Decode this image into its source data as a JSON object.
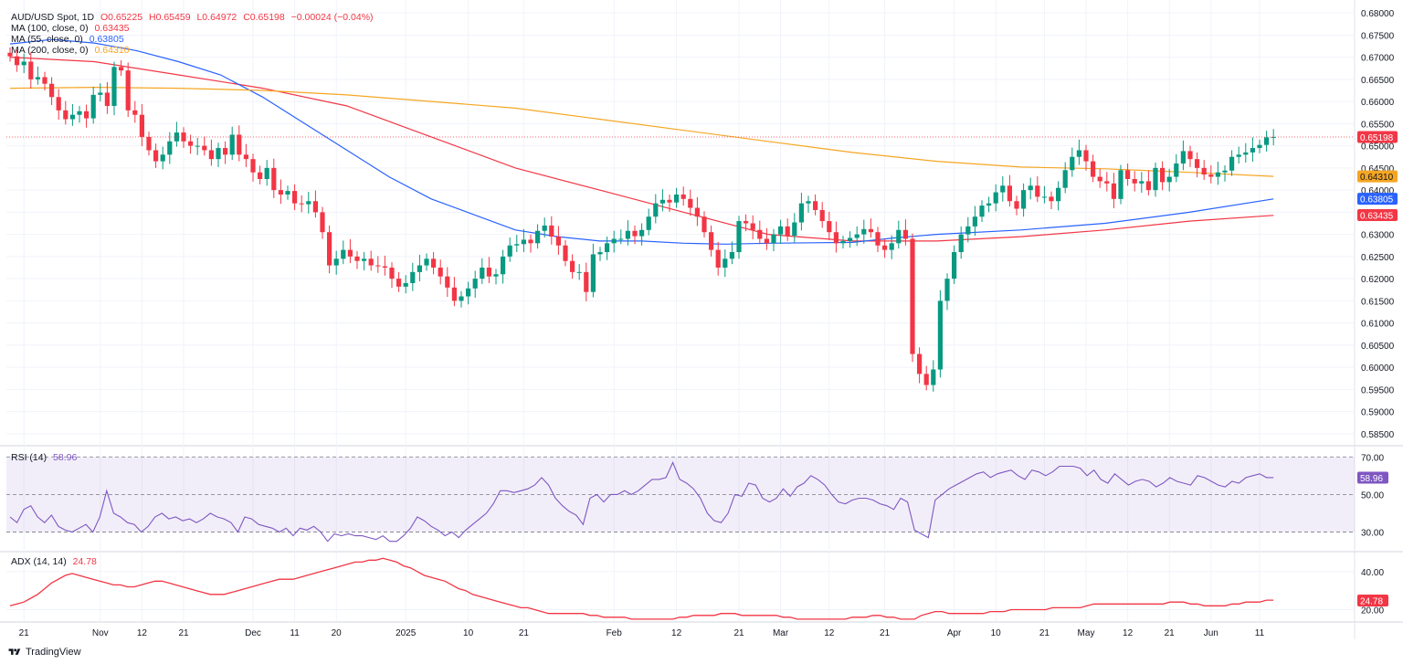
{
  "symbol": {
    "name": "AUD/USD Spot, 1D",
    "open": "O0.65225",
    "high": "H0.65459",
    "low": "L0.64972",
    "close": "C0.65198",
    "change": "−0.00024 (−0.04%)"
  },
  "indicators": {
    "ma100": {
      "label": "MA (100, close, 0)",
      "value": "0.63435",
      "color": "#f23645"
    },
    "ma55": {
      "label": "MA (55, close, 0)",
      "value": "0.63805",
      "color": "#2962ff"
    },
    "ma200": {
      "label": "MA (200, close, 0)",
      "value": "0.64310",
      "color": "#f5a623"
    },
    "rsi": {
      "label": "RSI (14)",
      "value": "58.96",
      "color": "#7e57c2"
    },
    "adx": {
      "label": "ADX (14, 14)",
      "value": "24.78",
      "color": "#f23645"
    }
  },
  "brand": "TradingView",
  "chart_data": [
    {
      "type": "candlestick",
      "title": "AUD/USD Spot, 1D",
      "ylim": [
        0.5825,
        0.6825
      ],
      "yticks": [
        "0.68000",
        "0.67500",
        "0.67000",
        "0.66500",
        "0.66000",
        "0.65500",
        "0.65000",
        "0.64500",
        "0.64000",
        "0.63500",
        "0.63000",
        "0.62500",
        "0.62000",
        "0.61500",
        "0.61000",
        "0.60500",
        "0.60000",
        "0.59500",
        "0.59000",
        "0.58500"
      ],
      "xticks": [
        "21",
        "Nov",
        "12",
        "21",
        "Dec",
        "11",
        "20",
        "2025",
        "10",
        "21",
        "Feb",
        "12",
        "21",
        "Mar",
        "12",
        "21",
        "Apr",
        "10",
        "21",
        "May",
        "12",
        "21",
        "Jun",
        "11"
      ],
      "last_price": "0.65198",
      "closes": [
        0.6702,
        0.6682,
        0.669,
        0.665,
        0.6655,
        0.664,
        0.661,
        0.658,
        0.656,
        0.657,
        0.6578,
        0.6562,
        0.6615,
        0.662,
        0.659,
        0.6678,
        0.667,
        0.658,
        0.657,
        0.652,
        0.649,
        0.6465,
        0.648,
        0.651,
        0.653,
        0.651,
        0.65,
        0.65,
        0.649,
        0.647,
        0.6495,
        0.648,
        0.6525,
        0.648,
        0.647,
        0.644,
        0.6425,
        0.645,
        0.64,
        0.639,
        0.6398,
        0.637,
        0.6368,
        0.6375,
        0.635,
        0.6305,
        0.623,
        0.6245,
        0.6265,
        0.625,
        0.624,
        0.6245,
        0.623,
        0.6228,
        0.6225,
        0.62,
        0.6182,
        0.619,
        0.6215,
        0.623,
        0.6245,
        0.6225,
        0.6205,
        0.618,
        0.615,
        0.616,
        0.6178,
        0.62,
        0.6225,
        0.6205,
        0.621,
        0.625,
        0.6275,
        0.6278,
        0.6288,
        0.628,
        0.6308,
        0.632,
        0.6295,
        0.6275,
        0.624,
        0.6215,
        0.6215,
        0.617,
        0.6255,
        0.626,
        0.628,
        0.629,
        0.629,
        0.6308,
        0.6296,
        0.631,
        0.634,
        0.637,
        0.6378,
        0.6372,
        0.639,
        0.638,
        0.636,
        0.634,
        0.6305,
        0.6265,
        0.6225,
        0.6245,
        0.626,
        0.633,
        0.6325,
        0.631,
        0.629,
        0.628,
        0.63,
        0.6318,
        0.6297,
        0.6327,
        0.637,
        0.6375,
        0.6355,
        0.633,
        0.6305,
        0.628,
        0.6285,
        0.6292,
        0.63,
        0.6312,
        0.6305,
        0.6275,
        0.6265,
        0.628,
        0.631,
        0.629,
        0.603,
        0.5985,
        0.596,
        0.5995,
        0.615,
        0.62,
        0.626,
        0.63,
        0.6318,
        0.634,
        0.6365,
        0.637,
        0.6395,
        0.641,
        0.6375,
        0.6358,
        0.64,
        0.641,
        0.6385,
        0.6385,
        0.6375,
        0.6405,
        0.6445,
        0.6475,
        0.649,
        0.6465,
        0.643,
        0.642,
        0.6415,
        0.638,
        0.6445,
        0.6425,
        0.6415,
        0.642,
        0.64,
        0.645,
        0.6418,
        0.643,
        0.646,
        0.6488,
        0.647,
        0.645,
        0.6435,
        0.643,
        0.644,
        0.6444,
        0.6475,
        0.648,
        0.6485,
        0.6495,
        0.6502,
        0.6519,
        0.652
      ],
      "moving_averages": [
        {
          "name": "MA (100, close, 0)",
          "color": "#f23645",
          "points": [
            [
              0,
              0.67
            ],
            [
              20,
              0.669
            ],
            [
              40,
              0.666
            ],
            [
              60,
              0.663
            ],
            [
              80,
              0.659
            ],
            [
              100,
              0.652
            ],
            [
              120,
              0.645
            ],
            [
              140,
              0.64
            ],
            [
              160,
              0.635
            ],
            [
              180,
              0.63
            ],
            [
              200,
              0.6285
            ],
            [
              220,
              0.6285
            ],
            [
              240,
              0.6295
            ],
            [
              260,
              0.631
            ],
            [
              280,
              0.633
            ],
            [
              300,
              0.6343
            ]
          ]
        },
        {
          "name": "MA (55, close, 0)",
          "color": "#2962ff",
          "points": [
            [
              0,
              0.673
            ],
            [
              10,
              0.674
            ],
            [
              20,
              0.6732
            ],
            [
              30,
              0.6715
            ],
            [
              40,
              0.669
            ],
            [
              50,
              0.666
            ],
            [
              60,
              0.661
            ],
            [
              70,
              0.655
            ],
            [
              80,
              0.649
            ],
            [
              90,
              0.643
            ],
            [
              100,
              0.638
            ],
            [
              110,
              0.6345
            ],
            [
              120,
              0.631
            ],
            [
              130,
              0.6295
            ],
            [
              140,
              0.6285
            ],
            [
              150,
              0.6285
            ],
            [
              160,
              0.628
            ],
            [
              170,
              0.6278
            ],
            [
              180,
              0.628
            ],
            [
              200,
              0.6282
            ],
            [
              210,
              0.6292
            ],
            [
              220,
              0.63
            ],
            [
              240,
              0.631
            ],
            [
              260,
              0.6325
            ],
            [
              280,
              0.635
            ],
            [
              300,
              0.638
            ]
          ]
        },
        {
          "name": "MA (200, close, 0)",
          "color": "#f5a623",
          "points": [
            [
              0,
              0.663
            ],
            [
              20,
              0.6632
            ],
            [
              40,
              0.663
            ],
            [
              60,
              0.6625
            ],
            [
              80,
              0.6615
            ],
            [
              100,
              0.66
            ],
            [
              120,
              0.6585
            ],
            [
              140,
              0.656
            ],
            [
              160,
              0.6535
            ],
            [
              180,
              0.651
            ],
            [
              200,
              0.6485
            ],
            [
              220,
              0.6465
            ],
            [
              240,
              0.6452
            ],
            [
              260,
              0.6448
            ],
            [
              280,
              0.644
            ],
            [
              300,
              0.6431
            ]
          ]
        }
      ]
    },
    {
      "type": "line",
      "title": "RSI (14)",
      "ylim": [
        20,
        75
      ],
      "yticks": [
        "70.00",
        "50.00",
        "30.00"
      ],
      "bands": [
        30,
        70
      ],
      "values": [
        38,
        35,
        42,
        44,
        38,
        35,
        39,
        33,
        31,
        30,
        32,
        34,
        30,
        38,
        52,
        40,
        38,
        35,
        34,
        30,
        33,
        38,
        40,
        37,
        38,
        36,
        37,
        35,
        37,
        40,
        38,
        37,
        35,
        30,
        38,
        37,
        34,
        33,
        32,
        30,
        32,
        28,
        32,
        31,
        33,
        30,
        25,
        29,
        28,
        29,
        28,
        28,
        27,
        26,
        28,
        25,
        25,
        28,
        32,
        38,
        36,
        33,
        31,
        28,
        30,
        27,
        31,
        34,
        37,
        40,
        45,
        52,
        52,
        51,
        52,
        53,
        55,
        59,
        55,
        48,
        44,
        41,
        39,
        34,
        48,
        50,
        46,
        50,
        50,
        52,
        50,
        52,
        55,
        58,
        58,
        59,
        67,
        58,
        56,
        53,
        48,
        40,
        36,
        35,
        40,
        50,
        49,
        56,
        55,
        48,
        46,
        48,
        53,
        49,
        54,
        56,
        60,
        58,
        55,
        50,
        46,
        45,
        47,
        48,
        48,
        47,
        45,
        44,
        42,
        48,
        46,
        31,
        29,
        27,
        47,
        50,
        53,
        55,
        57,
        59,
        61,
        62,
        59,
        61,
        62,
        63,
        60,
        58,
        63,
        62,
        60,
        62,
        65,
        65,
        65,
        64,
        60,
        63,
        58,
        56,
        61,
        58,
        55,
        57,
        58,
        57,
        54,
        56,
        59,
        57,
        56,
        55,
        60,
        59,
        57,
        55,
        54,
        57,
        56,
        59,
        60,
        61,
        59,
        59
      ],
      "last_value": "58.96"
    },
    {
      "type": "line",
      "title": "ADX (14, 14)",
      "ylim": [
        14,
        50
      ],
      "yticks": [
        "40.00",
        "20.00"
      ],
      "values": [
        22,
        23,
        24,
        26,
        28,
        31,
        34,
        36,
        38,
        39,
        38,
        37,
        36,
        35,
        34,
        33,
        33,
        32,
        32,
        33,
        34,
        35,
        35,
        34,
        33,
        32,
        31,
        30,
        29,
        28,
        28,
        28,
        29,
        30,
        31,
        32,
        33,
        34,
        35,
        36,
        36,
        36,
        37,
        38,
        39,
        40,
        41,
        42,
        43,
        44,
        45,
        45,
        46,
        46,
        47,
        46,
        45,
        43,
        42,
        40,
        38,
        37,
        36,
        35,
        33,
        31,
        30,
        28,
        27,
        26,
        25,
        24,
        23,
        22,
        21,
        21,
        20,
        19,
        18,
        18,
        18,
        18,
        18,
        18,
        17,
        17,
        16,
        16,
        16,
        16,
        15,
        15,
        15,
        15,
        15,
        15,
        15,
        16,
        16,
        17,
        17,
        17,
        17,
        18,
        18,
        18,
        17,
        17,
        17,
        17,
        17,
        17,
        16,
        16,
        15,
        15,
        15,
        15,
        15,
        15,
        15,
        15,
        16,
        16,
        16,
        17,
        17,
        16,
        16,
        15,
        15,
        15,
        17,
        18,
        19,
        19,
        18,
        18,
        18,
        18,
        18,
        18,
        19,
        19,
        19,
        20,
        20,
        20,
        20,
        20,
        20,
        21,
        21,
        21,
        21,
        21,
        22,
        23,
        23,
        23,
        23,
        23,
        23,
        23,
        23,
        23,
        23,
        23,
        24,
        24,
        24,
        23,
        23,
        22,
        22,
        22,
        22,
        23,
        23,
        24,
        24,
        24,
        25,
        25
      ]
    }
  ]
}
